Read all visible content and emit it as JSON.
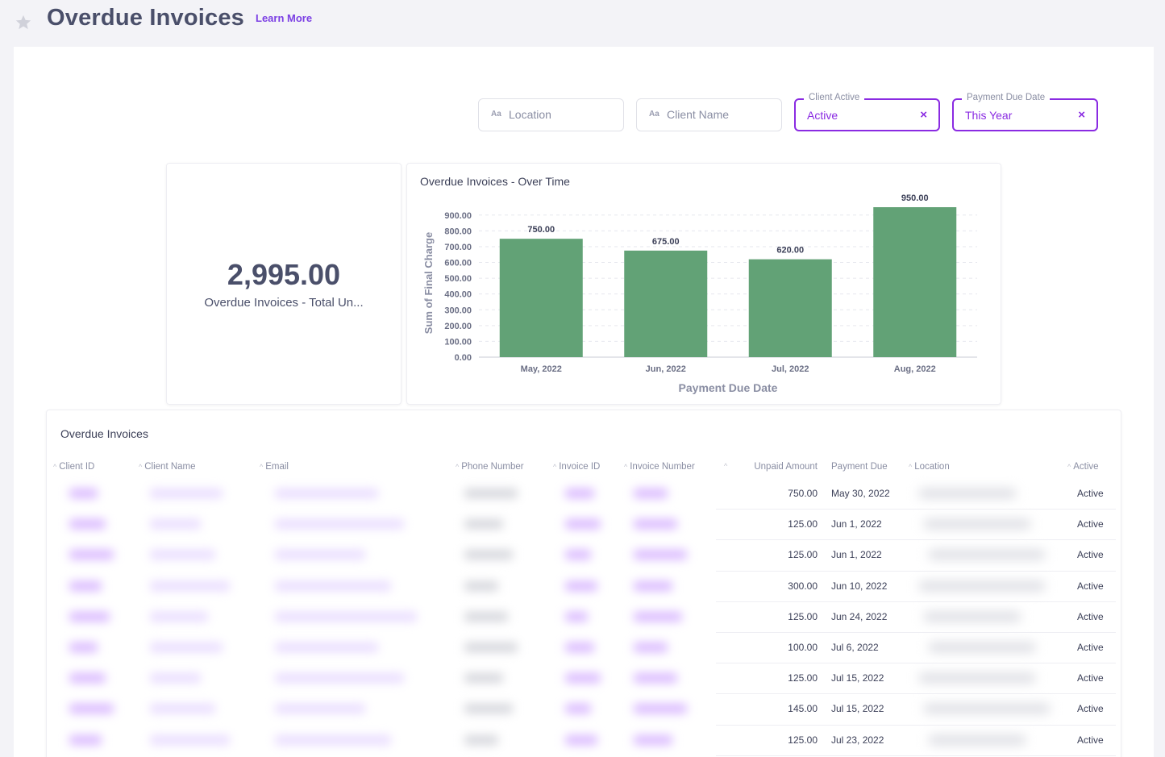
{
  "header": {
    "title": "Overdue Invoices",
    "learn_more": "Learn More"
  },
  "filters": {
    "location": {
      "placeholder": "Location",
      "type_icon": "Aa"
    },
    "client_name": {
      "placeholder": "Client Name",
      "type_icon": "Aa"
    },
    "client_active": {
      "legend": "Client Active",
      "value": "Active"
    },
    "payment_due": {
      "legend": "Payment Due Date",
      "value": "This Year"
    },
    "clear_glyph": "×"
  },
  "kpi": {
    "value": "2,995.00",
    "label": "Overdue Invoices - Total Un..."
  },
  "chart_data": {
    "type": "bar",
    "title": "Overdue Invoices - Over Time",
    "categories": [
      "May, 2022",
      "Jun, 2022",
      "Jul, 2022",
      "Aug, 2022"
    ],
    "values": [
      750,
      675,
      620,
      950
    ],
    "data_labels": [
      "750.00",
      "675.00",
      "620.00",
      "950.00"
    ],
    "xlabel": "Payment Due Date",
    "ylabel": "Sum of Final Charge",
    "ylim": [
      0,
      950
    ],
    "yticks": [
      0,
      100,
      200,
      300,
      400,
      500,
      600,
      700,
      800,
      900
    ],
    "ytick_labels": [
      "0.00",
      "100.00",
      "200.00",
      "300.00",
      "400.00",
      "500.00",
      "600.00",
      "700.00",
      "800.00",
      "900.00"
    ],
    "grid": true,
    "bar_color": "#62a276"
  },
  "table": {
    "title": "Overdue Invoices",
    "columns": [
      "Client ID",
      "Client Name",
      "Email",
      "Phone Number",
      "Invoice ID",
      "Invoice Number",
      "Unpaid Amount",
      "Payment Due",
      "Location",
      "Active"
    ],
    "rows": [
      {
        "unpaid": "750.00",
        "due": "May 30, 2022",
        "active": "Active"
      },
      {
        "unpaid": "125.00",
        "due": "Jun 1, 2022",
        "active": "Active"
      },
      {
        "unpaid": "125.00",
        "due": "Jun 1, 2022",
        "active": "Active"
      },
      {
        "unpaid": "300.00",
        "due": "Jun 10, 2022",
        "active": "Active"
      },
      {
        "unpaid": "125.00",
        "due": "Jun 24, 2022",
        "active": "Active"
      },
      {
        "unpaid": "100.00",
        "due": "Jul 6, 2022",
        "active": "Active"
      },
      {
        "unpaid": "125.00",
        "due": "Jul 15, 2022",
        "active": "Active"
      },
      {
        "unpaid": "145.00",
        "due": "Jul 15, 2022",
        "active": "Active"
      },
      {
        "unpaid": "125.00",
        "due": "Jul 23, 2022",
        "active": "Active"
      }
    ]
  },
  "colors": {
    "accent": "#8a2be2",
    "bar": "#62a276",
    "text": "#4a4f6a",
    "background": "#f3f3f7",
    "redacted": "#d9b8ff"
  }
}
